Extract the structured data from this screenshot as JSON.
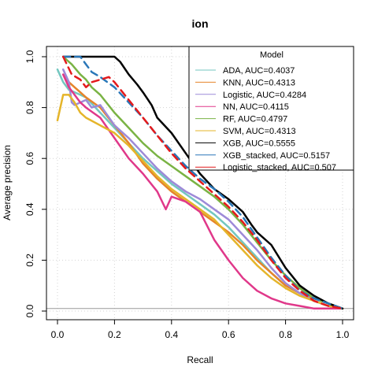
{
  "chart_data": {
    "type": "line",
    "title": "ion",
    "xlabel": "Recall",
    "ylabel": "Average precision",
    "xlim": [
      0,
      1
    ],
    "ylim": [
      0,
      1
    ],
    "x_ticks": [
      "0.0",
      "0.2",
      "0.4",
      "0.6",
      "0.8",
      "1.0"
    ],
    "y_ticks": [
      "0.0",
      "0.2",
      "0.4",
      "0.6",
      "0.8",
      "1.0"
    ],
    "grid": true,
    "baseline": 0.01,
    "legend": {
      "title": "Model",
      "placement": "top-right"
    },
    "series": [
      {
        "name": "ADA, AUC=0.4037",
        "color": "#73c7c0",
        "dash": "solid",
        "x": [
          0,
          0.02,
          0.04,
          0.06,
          0.08,
          0.1,
          0.15,
          0.2,
          0.25,
          0.3,
          0.35,
          0.4,
          0.45,
          0.5,
          0.55,
          0.6,
          0.65,
          0.7,
          0.75,
          0.8,
          0.85,
          0.9,
          0.95,
          1.0
        ],
        "y": [
          0.95,
          0.9,
          0.87,
          0.86,
          0.85,
          0.84,
          0.78,
          0.72,
          0.66,
          0.6,
          0.55,
          0.5,
          0.46,
          0.42,
          0.38,
          0.33,
          0.27,
          0.21,
          0.15,
          0.1,
          0.07,
          0.04,
          0.02,
          0.01
        ]
      },
      {
        "name": "KNN, AUC=0.4313",
        "color": "#e6842a",
        "dash": "solid",
        "x": [
          0.02,
          0.04,
          0.06,
          0.08,
          0.1,
          0.15,
          0.2,
          0.25,
          0.3,
          0.35,
          0.4,
          0.45,
          0.5,
          0.55,
          0.6,
          0.65,
          0.7,
          0.75,
          0.8,
          0.85,
          0.9,
          0.95,
          1.0
        ],
        "y": [
          0.93,
          0.9,
          0.88,
          0.86,
          0.84,
          0.8,
          0.73,
          0.66,
          0.58,
          0.52,
          0.47,
          0.43,
          0.39,
          0.35,
          0.31,
          0.26,
          0.2,
          0.15,
          0.1,
          0.07,
          0.05,
          0.03,
          0.01
        ]
      },
      {
        "name": "Logistic, AUC=0.4284",
        "color": "#9d8ad8",
        "dash": "solid",
        "x": [
          0.02,
          0.04,
          0.05,
          0.06,
          0.08,
          0.1,
          0.12,
          0.15,
          0.2,
          0.25,
          0.3,
          0.35,
          0.4,
          0.45,
          0.5,
          0.55,
          0.6,
          0.65,
          0.7,
          0.75,
          0.8,
          0.85,
          0.9,
          0.95,
          1.0
        ],
        "y": [
          0.95,
          0.9,
          0.82,
          0.81,
          0.82,
          0.83,
          0.8,
          0.81,
          0.73,
          0.68,
          0.62,
          0.56,
          0.51,
          0.47,
          0.44,
          0.4,
          0.36,
          0.3,
          0.24,
          0.17,
          0.11,
          0.07,
          0.04,
          0.02,
          0.01
        ]
      },
      {
        "name": "NN, AUC=0.4115",
        "color": "#e0388a",
        "dash": "solid",
        "x": [
          0.02,
          0.04,
          0.06,
          0.08,
          0.1,
          0.15,
          0.2,
          0.25,
          0.3,
          0.35,
          0.38,
          0.4,
          0.45,
          0.5,
          0.55,
          0.6,
          0.65,
          0.7,
          0.75,
          0.8,
          0.85,
          0.9,
          0.95,
          1.0
        ],
        "y": [
          0.93,
          0.88,
          0.85,
          0.82,
          0.8,
          0.76,
          0.68,
          0.6,
          0.54,
          0.47,
          0.4,
          0.45,
          0.43,
          0.39,
          0.28,
          0.2,
          0.13,
          0.08,
          0.05,
          0.03,
          0.02,
          0.01,
          0.01,
          0.01
        ]
      },
      {
        "name": "RF, AUC=0.4797",
        "color": "#7ab344",
        "dash": "solid",
        "x": [
          0.02,
          0.05,
          0.08,
          0.1,
          0.12,
          0.15,
          0.2,
          0.25,
          0.3,
          0.35,
          0.4,
          0.45,
          0.5,
          0.55,
          0.6,
          0.65,
          0.7,
          0.75,
          0.8,
          0.85,
          0.9,
          0.95,
          1.0
        ],
        "y": [
          1.0,
          0.97,
          0.93,
          0.91,
          0.88,
          0.85,
          0.78,
          0.72,
          0.66,
          0.61,
          0.57,
          0.53,
          0.49,
          0.45,
          0.4,
          0.34,
          0.27,
          0.2,
          0.14,
          0.09,
          0.05,
          0.03,
          0.01
        ]
      },
      {
        "name": "SVM, AUC=0.4313",
        "color": "#e5b52a",
        "dash": "solid",
        "x": [
          0,
          0.02,
          0.04,
          0.06,
          0.08,
          0.1,
          0.15,
          0.2,
          0.25,
          0.3,
          0.35,
          0.4,
          0.45,
          0.5,
          0.55,
          0.6,
          0.65,
          0.7,
          0.75,
          0.8,
          0.85,
          0.9,
          0.95,
          1.0
        ],
        "y": [
          0.75,
          0.85,
          0.85,
          0.82,
          0.78,
          0.76,
          0.73,
          0.7,
          0.65,
          0.59,
          0.53,
          0.48,
          0.44,
          0.4,
          0.36,
          0.3,
          0.24,
          0.18,
          0.13,
          0.09,
          0.06,
          0.04,
          0.02,
          0.01
        ]
      },
      {
        "name": "XGB, AUC=0.5555",
        "color": "#000000",
        "dash": "solid",
        "x": [
          0.02,
          0.05,
          0.1,
          0.15,
          0.2,
          0.22,
          0.25,
          0.28,
          0.3,
          0.33,
          0.35,
          0.4,
          0.45,
          0.5,
          0.55,
          0.6,
          0.65,
          0.68,
          0.7,
          0.75,
          0.8,
          0.85,
          0.9,
          0.95,
          1.0
        ],
        "y": [
          1.0,
          1.0,
          1.0,
          1.0,
          1.0,
          0.98,
          0.93,
          0.89,
          0.86,
          0.81,
          0.76,
          0.7,
          0.62,
          0.54,
          0.48,
          0.44,
          0.39,
          0.34,
          0.31,
          0.26,
          0.17,
          0.1,
          0.06,
          0.03,
          0.01
        ]
      },
      {
        "name": "XGB_stacked, AUC=0.5157",
        "color": "#2a77b8",
        "dash": "dashed",
        "x": [
          0.02,
          0.05,
          0.08,
          0.1,
          0.12,
          0.15,
          0.2,
          0.25,
          0.3,
          0.35,
          0.4,
          0.45,
          0.5,
          0.55,
          0.6,
          0.65,
          0.7,
          0.75,
          0.8,
          0.85,
          0.9,
          0.95,
          1.0
        ],
        "y": [
          1.0,
          1.0,
          1.0,
          0.97,
          0.94,
          0.92,
          0.88,
          0.82,
          0.76,
          0.69,
          0.63,
          0.57,
          0.52,
          0.48,
          0.43,
          0.37,
          0.29,
          0.21,
          0.14,
          0.08,
          0.05,
          0.03,
          0.01
        ]
      },
      {
        "name": "Logistic_stacked, AUC=0.507",
        "color": "#e41a1c",
        "dash": "dashed",
        "x": [
          0.02,
          0.05,
          0.08,
          0.1,
          0.12,
          0.15,
          0.18,
          0.2,
          0.25,
          0.3,
          0.35,
          0.4,
          0.45,
          0.5,
          0.55,
          0.6,
          0.65,
          0.7,
          0.75,
          0.8,
          0.85,
          0.9,
          0.95,
          1.0
        ],
        "y": [
          1.0,
          0.93,
          0.91,
          0.88,
          0.9,
          0.91,
          0.92,
          0.9,
          0.83,
          0.76,
          0.69,
          0.62,
          0.56,
          0.51,
          0.46,
          0.41,
          0.35,
          0.28,
          0.2,
          0.13,
          0.08,
          0.04,
          0.02,
          0.01
        ]
      }
    ]
  }
}
